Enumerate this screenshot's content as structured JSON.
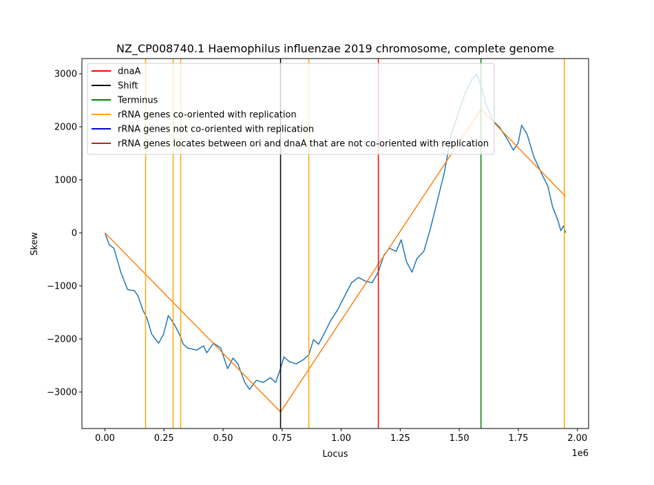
{
  "chart_data": {
    "type": "line",
    "title": "NZ_CP008740.1 Haemophilus influenzae 2019 chromosome, complete genome",
    "xlabel": "Locus",
    "ylabel": "Skew",
    "x_offset_label": "1e6",
    "xlim": [
      -97500,
      2047500
    ],
    "ylim": [
      -3688,
      3286
    ],
    "xticks": [
      {
        "value": 0,
        "label": "0.00"
      },
      {
        "value": 250000,
        "label": "0.25"
      },
      {
        "value": 500000,
        "label": "0.50"
      },
      {
        "value": 750000,
        "label": "0.75"
      },
      {
        "value": 1000000,
        "label": "1.00"
      },
      {
        "value": 1250000,
        "label": "1.25"
      },
      {
        "value": 1500000,
        "label": "1.50"
      },
      {
        "value": 1750000,
        "label": "1.75"
      },
      {
        "value": 2000000,
        "label": "2.00"
      }
    ],
    "yticks": [
      {
        "value": -3000,
        "label": "−3000"
      },
      {
        "value": -2000,
        "label": "−2000"
      },
      {
        "value": -1000,
        "label": "−1000"
      },
      0,
      1000,
      2000,
      3000
    ],
    "lines": [
      {
        "color": "#1f77b4",
        "x": [
          0,
          17500,
          38000,
          67000,
          96000,
          125000,
          140000,
          160000,
          178000,
          198000,
          227000,
          248000,
          268000,
          292000,
          315000,
          332000,
          350000,
          388000,
          417000,
          431000,
          460000,
          490000,
          519000,
          542000,
          563000,
          592000,
          612000,
          641000,
          671000,
          700000,
          723000,
          743000,
          758000,
          781000,
          810000,
          840000,
          863000,
          883000,
          904000,
          927000,
          956000,
          985000,
          1015000,
          1044000,
          1073000,
          1102000,
          1131000,
          1157000,
          1181000,
          1204000,
          1233000,
          1254000,
          1277000,
          1300000,
          1321000,
          1350000,
          1379000,
          1408000,
          1437000,
          1466000,
          1496000,
          1525000,
          1554000,
          1574000,
          1592000,
          1612000,
          1641000,
          1671000,
          1700000,
          1729000,
          1749000,
          1764000,
          1787000,
          1816000,
          1846000,
          1875000,
          1895000,
          1918000,
          1930000,
          1941000,
          1950000
        ],
        "values": [
          0,
          -220,
          -290,
          -740,
          -1070,
          -1090,
          -1190,
          -1450,
          -1610,
          -1910,
          -2080,
          -1910,
          -1560,
          -1710,
          -1910,
          -2100,
          -2170,
          -2210,
          -2130,
          -2260,
          -2080,
          -2170,
          -2560,
          -2360,
          -2470,
          -2820,
          -2950,
          -2780,
          -2820,
          -2730,
          -2820,
          -2560,
          -2340,
          -2430,
          -2470,
          -2390,
          -2300,
          -2010,
          -2100,
          -1910,
          -1650,
          -1450,
          -1190,
          -940,
          -840,
          -910,
          -940,
          -740,
          -420,
          -290,
          -350,
          -130,
          -550,
          -740,
          -480,
          -350,
          100,
          620,
          1140,
          1860,
          2250,
          2640,
          2900,
          2990,
          2770,
          2440,
          2120,
          1990,
          1790,
          1560,
          1690,
          2030,
          1860,
          1430,
          1140,
          880,
          490,
          230,
          40,
          130,
          0
        ]
      },
      {
        "color": "#ff7f0e",
        "x": [
          0,
          743400,
          1591800,
          1950000
        ],
        "values": [
          0,
          -3377,
          2330,
          685
        ]
      }
    ],
    "vlines": [
      {
        "name": "dnaA",
        "color": "#ff0000",
        "x": [
          1157400
        ]
      },
      {
        "name": "Shift",
        "color": "#000000",
        "x": [
          743400
        ]
      },
      {
        "name": "Terminus",
        "color": "#008000",
        "x": [
          1591800
        ]
      },
      {
        "name": "rRNA genes co-oriented with replication",
        "color": "#ffa500",
        "x": [
          172000,
          288600,
          320700,
          863000,
          1944600
        ]
      },
      {
        "name": "rRNA genes not co-oriented with replication",
        "color": "#0000cd",
        "x": []
      },
      {
        "name": "rRNA genes locates between ori and dnaA that are not co-oriented with replication",
        "color": "#a52a2a",
        "x": []
      }
    ],
    "legend": "upper left"
  }
}
